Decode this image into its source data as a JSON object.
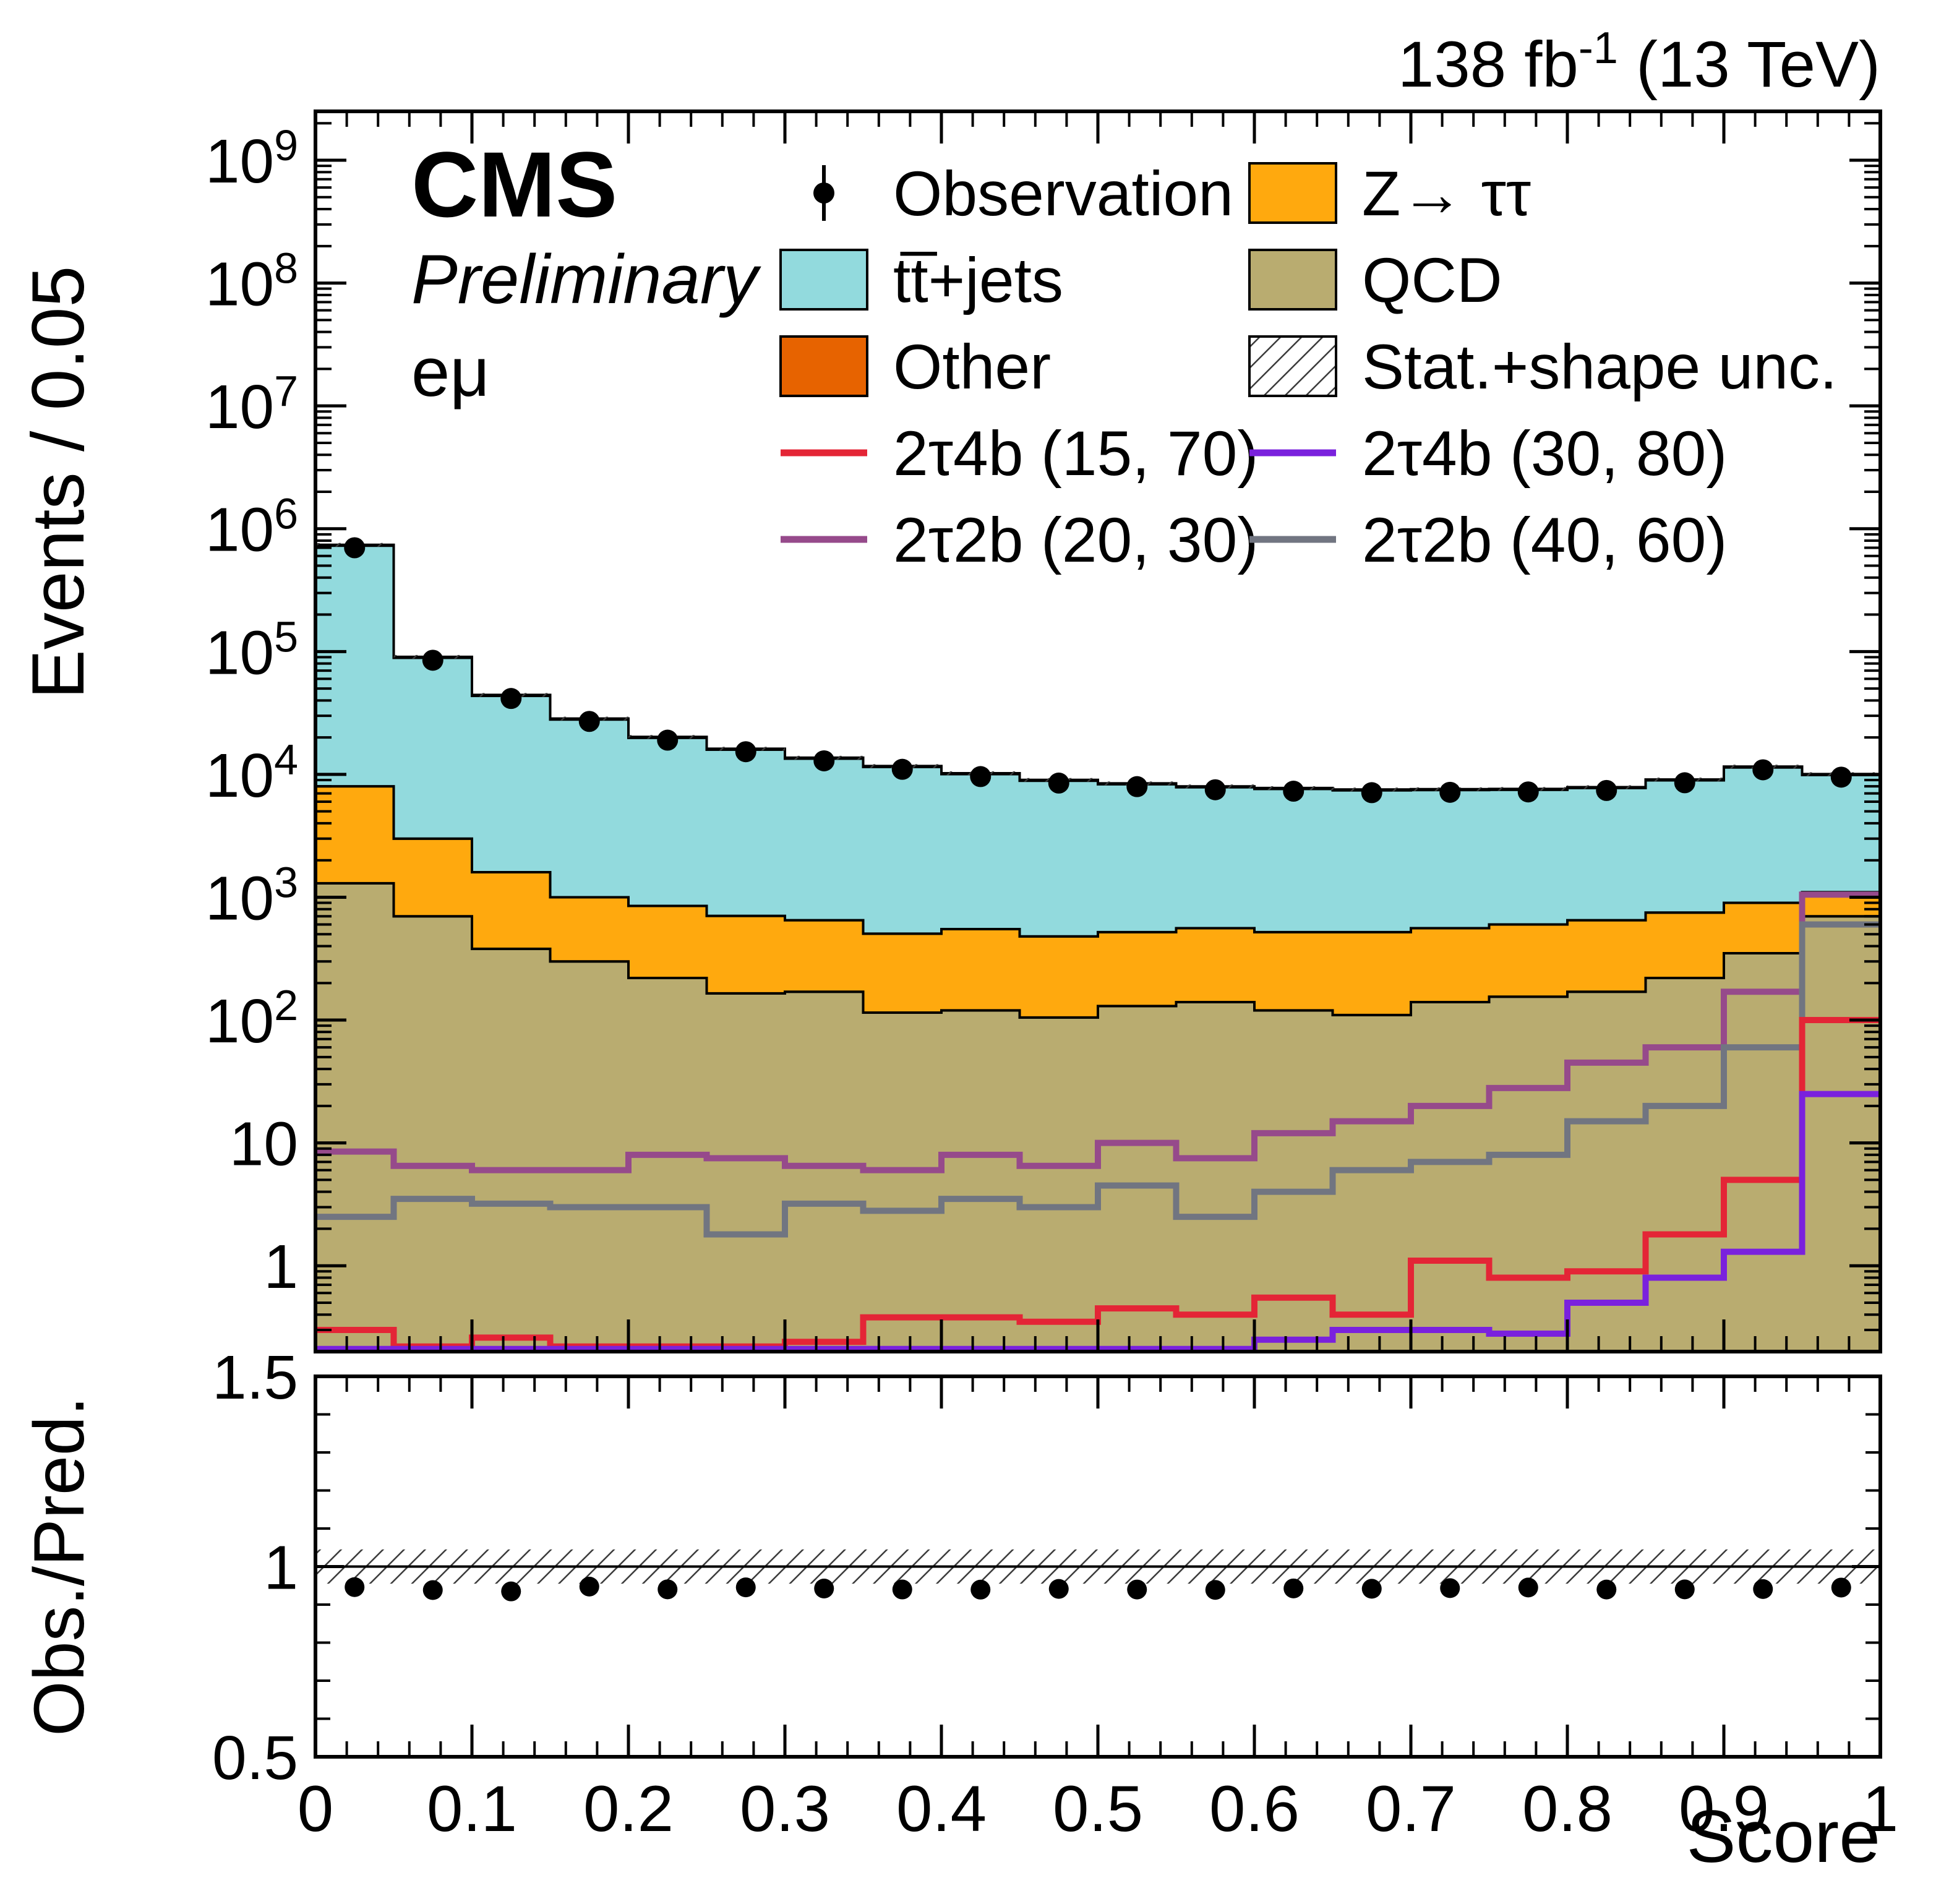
{
  "header": {
    "lumi_text": "138 fb",
    "lumi_sup": "-1",
    "energy_text": " (13 TeV)"
  },
  "labels": {
    "experiment": "CMS",
    "status": "Preliminary",
    "channel": "eμ",
    "y_axis": "Events / 0.05",
    "ratio_y_axis": "Obs./Pred.",
    "x_axis": "Score"
  },
  "colors": {
    "ttjets": "#92dadd",
    "ztautau": "#ffa90e",
    "qcd": "#b9ac70",
    "other": "#e76300",
    "sig_red": "#e42536",
    "sig_violet": "#7a21dd",
    "sig_mauve": "#964a8b",
    "sig_gray": "#717581",
    "hatch": "#3a3a3a"
  },
  "legend": [
    {
      "label": "Observation",
      "type": "marker",
      "color": "#000000",
      "col": 0,
      "row": 0
    },
    {
      "label": "Z→ ττ",
      "type": "fill",
      "color": "#ffa90e",
      "col": 1,
      "row": 0
    },
    {
      "label": "tt̅+jets",
      "type": "fill",
      "color": "#92dadd",
      "col": 0,
      "row": 1
    },
    {
      "label": "QCD",
      "type": "fill",
      "color": "#b9ac70",
      "col": 1,
      "row": 1
    },
    {
      "label": "Other",
      "type": "fill",
      "color": "#e76300",
      "col": 0,
      "row": 2
    },
    {
      "label": "Stat.+shape unc.",
      "type": "hatch",
      "color": "#3a3a3a",
      "col": 1,
      "row": 2
    },
    {
      "label": "2τ4b (15, 70)",
      "type": "line",
      "color": "#e42536",
      "col": 0,
      "row": 3
    },
    {
      "label": "2τ4b (30, 80)",
      "type": "line",
      "color": "#7a21dd",
      "col": 1,
      "row": 3
    },
    {
      "label": "2τ2b (20, 30)",
      "type": "line",
      "color": "#964a8b",
      "col": 0,
      "row": 4
    },
    {
      "label": "2τ2b (40, 60)",
      "type": "line",
      "color": "#717581",
      "col": 1,
      "row": 4
    }
  ],
  "chart_data": {
    "type": "bar",
    "subtype": "stacked-step-histogram-log-y-with-ratio",
    "xlabel": "Score",
    "ylabel": "Events / 0.05",
    "xlim": [
      0,
      1
    ],
    "ylim": [
      0.2,
      2500000000.0
    ],
    "bin_width": 0.05,
    "x_tick_labels": [
      "0",
      "0.1",
      "0.2",
      "0.3",
      "0.4",
      "0.5",
      "0.6",
      "0.7",
      "0.8",
      "0.9",
      "1"
    ],
    "y_tick_exponents": [
      0,
      1,
      2,
      3,
      4,
      5,
      6,
      7,
      8,
      9
    ],
    "series_stack": [
      {
        "name": "QCD",
        "color": "#b9ac70",
        "values": [
          1300,
          700,
          380,
          300,
          220,
          165,
          170,
          115,
          120,
          105,
          130,
          140,
          120,
          110,
          140,
          155,
          170,
          220,
          350,
          700
        ]
      },
      {
        "name": "Z→ ττ",
        "color": "#ffa90e",
        "values": [
          6700,
          2300,
          1220,
          700,
          630,
          540,
          480,
          390,
          430,
          375,
          390,
          420,
          400,
          410,
          420,
          445,
          480,
          530,
          550,
          400
        ]
      },
      {
        "name": "tt̅+jets",
        "color": "#92dadd",
        "values": [
          720000,
          86000,
          42000,
          27000,
          19000,
          15200,
          12800,
          11000,
          9500,
          8400,
          7800,
          7300,
          7100,
          6900,
          6900,
          6900,
          7100,
          8200,
          10500,
          8800
        ]
      },
      {
        "name": "Other",
        "color": "#e76300",
        "values": [
          12000,
          1600,
          800,
          500,
          360,
          280,
          240,
          200,
          170,
          150,
          140,
          130,
          125,
          120,
          120,
          120,
          125,
          145,
          185,
          155
        ]
      }
    ],
    "signals": [
      {
        "name": "2τ2b (20, 30)",
        "color": "#964a8b",
        "values": [
          8.5,
          6.5,
          6.0,
          6.0,
          8.0,
          7.5,
          6.5,
          6.0,
          8.0,
          6.5,
          10,
          7.5,
          12,
          15,
          20,
          28,
          45,
          60,
          170,
          1050
        ]
      },
      {
        "name": "2τ2b (40, 60)",
        "color": "#717581",
        "values": [
          2.5,
          3.5,
          3.2,
          3.0,
          3.0,
          1.8,
          3.2,
          2.8,
          3.5,
          3.0,
          4.5,
          2.5,
          4.0,
          6.0,
          7.0,
          8.0,
          15,
          20,
          60,
          600
        ]
      },
      {
        "name": "2τ4b (15, 70)",
        "color": "#e42536",
        "values": [
          0.3,
          0.22,
          0.26,
          0.22,
          0.22,
          0.22,
          0.24,
          0.38,
          0.38,
          0.35,
          0.45,
          0.4,
          0.55,
          0.4,
          1.1,
          0.8,
          0.9,
          1.8,
          5.0,
          100
        ]
      },
      {
        "name": "2τ4b (30, 80)",
        "color": "#7a21dd",
        "values": [
          0.21,
          0.21,
          0.21,
          0.21,
          0.21,
          0.21,
          0.21,
          0.21,
          0.21,
          0.21,
          0.21,
          0.21,
          0.25,
          0.3,
          0.3,
          0.28,
          0.5,
          0.8,
          1.3,
          25
        ]
      }
    ],
    "observation": [
      700000,
      85000,
      41500,
      27000,
      19000,
      15300,
      12900,
      11000,
      9600,
      8500,
      7950,
      7500,
      7300,
      7100,
      7150,
      7200,
      7400,
      8550,
      10900,
      9500
    ],
    "uncertainty_frac": 0.035,
    "ratio": {
      "ylabel": "Obs./Pred.",
      "ylim": [
        0.5,
        1.5
      ],
      "tick_values": [
        0.5,
        1,
        1.5
      ],
      "tick_labels": [
        "0.5",
        "1",
        "1.5"
      ],
      "band": 0.045,
      "point_err": 0.012
    }
  }
}
